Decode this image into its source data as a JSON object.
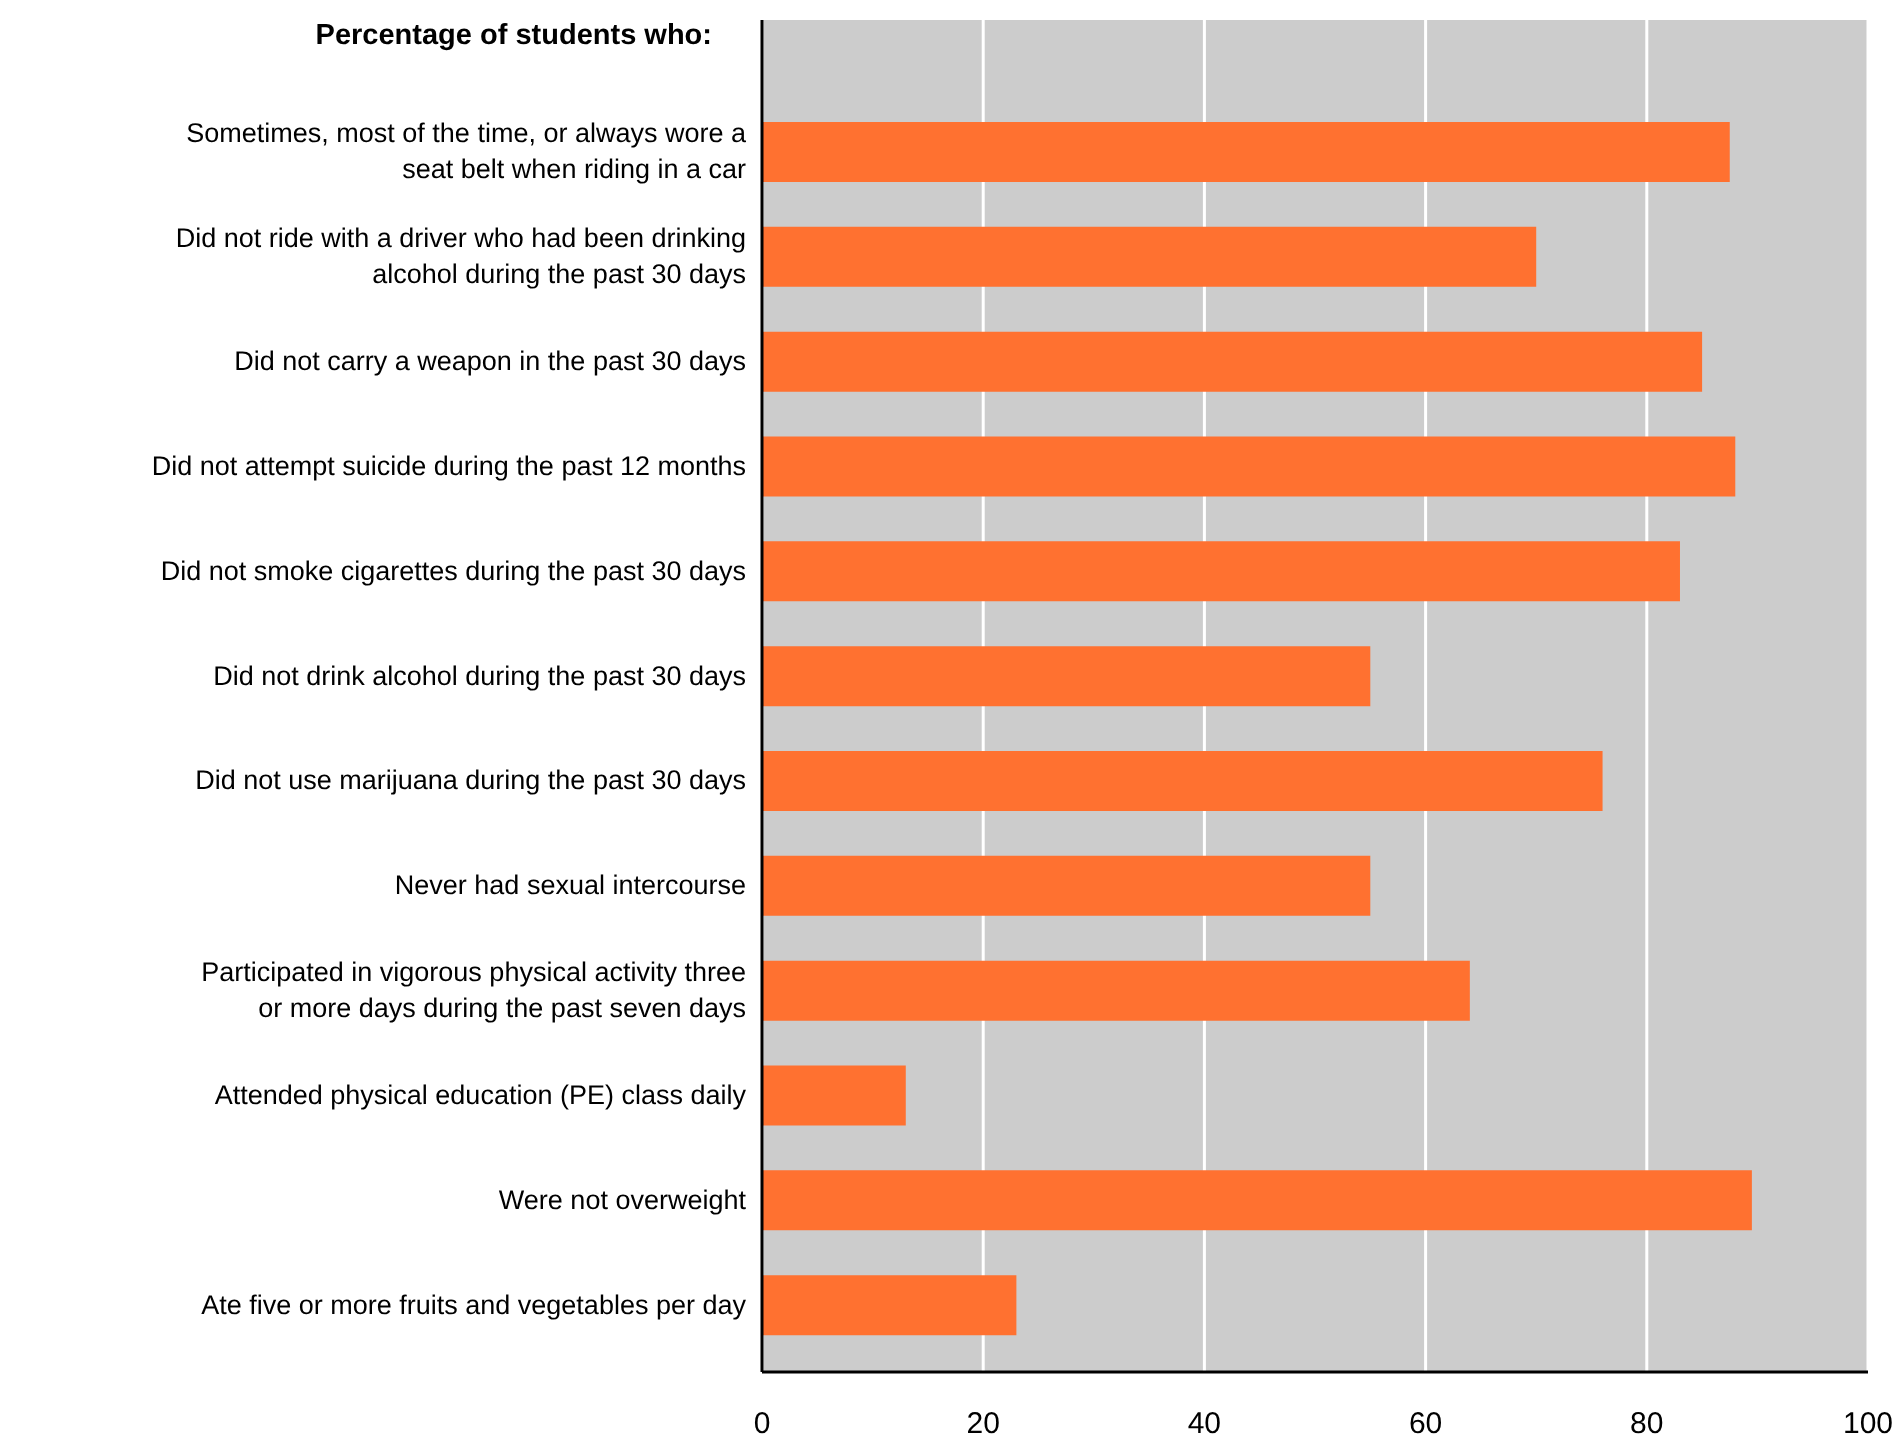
{
  "chart_data": {
    "type": "bar",
    "orientation": "horizontal",
    "ylabel": "Percentage of students who:",
    "categories": [
      "Sometimes, most of the time, or always wore a seat belt when riding in a car",
      "Did not ride with a driver who had been drinking alcohol during the past 30 days",
      "Did not carry a weapon in the past 30 days",
      "Did not attempt suicide during the past 12 months",
      "Did not smoke cigarettes during the past 30 days",
      "Did not drink alcohol during the past 30 days",
      "Did not use marijuana during the past 30 days",
      "Never had sexual intercourse",
      "Participated in vigorous physical activity three or more days during the past seven days",
      "Attended physical education (PE) class daily",
      "Were not overweight",
      "Ate five or more fruits and vegetables per day"
    ],
    "values": [
      87.5,
      70,
      85,
      88,
      83,
      55,
      76,
      55,
      64,
      13,
      89.5,
      23
    ],
    "color": "#ff7130",
    "xlim": [
      0,
      100
    ],
    "xticks": [
      0,
      20,
      40,
      60,
      80,
      100
    ],
    "grid": "x"
  }
}
